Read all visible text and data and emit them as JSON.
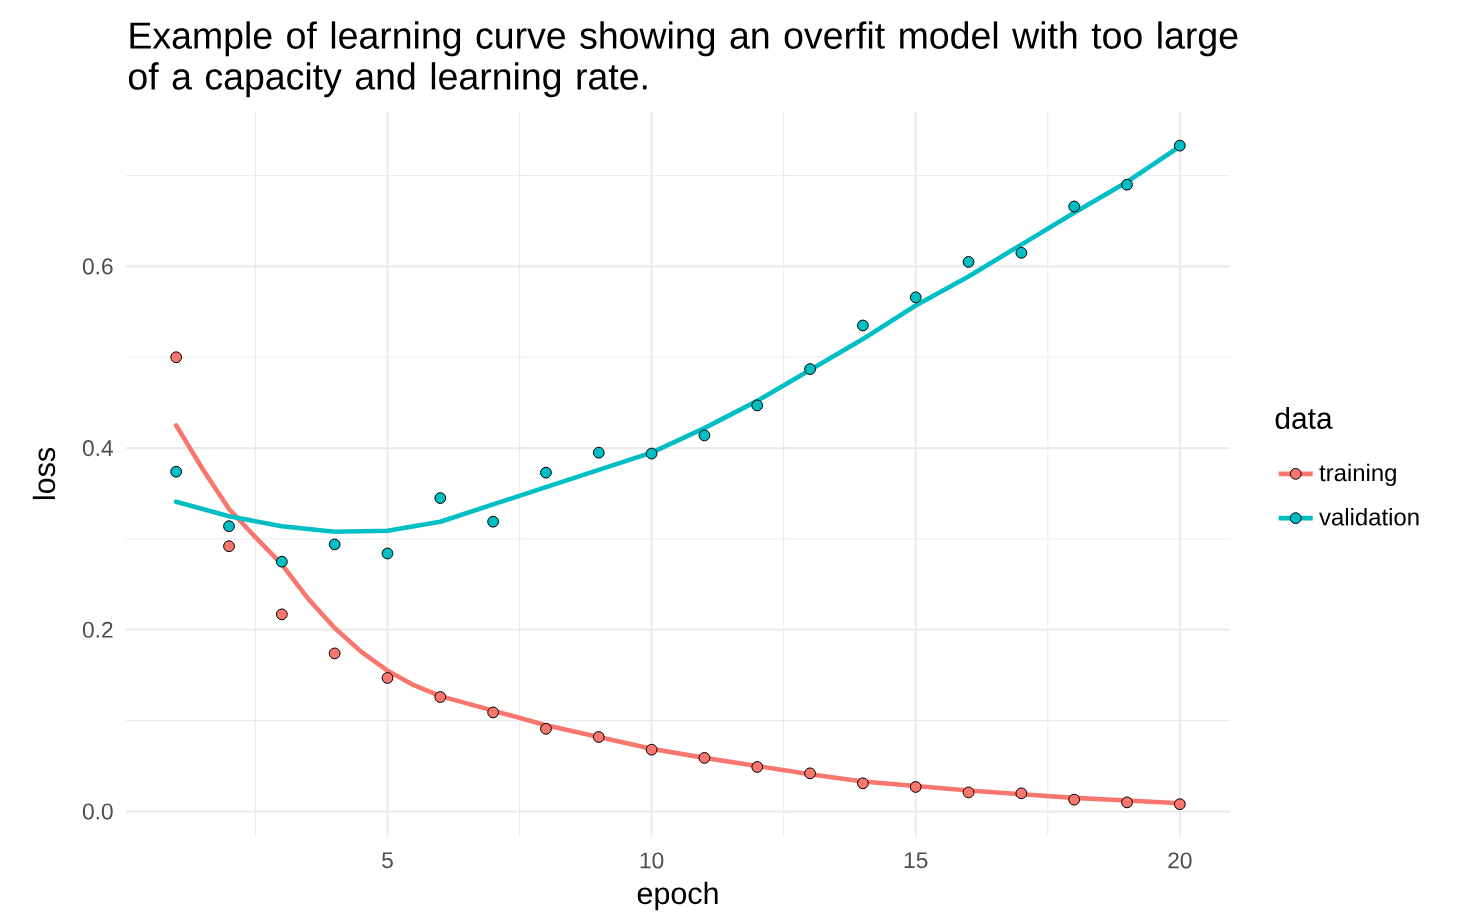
{
  "chart_data": {
    "type": "scatter",
    "title": "Example of learning curve showing an overfit model with too large of a capacity and learning rate.",
    "xlabel": "epoch",
    "ylabel": "loss",
    "legend_title": "data",
    "legend": "right",
    "grid": true,
    "marker": "circle",
    "xlim": [
      0.05,
      20.95
    ],
    "xticks": [
      5,
      10,
      15,
      20
    ],
    "ylim": [
      -0.027,
      0.77
    ],
    "yticks": [
      {
        "value": 0,
        "label": "0.0"
      },
      0.2,
      0.4,
      0.6
    ],
    "x": [
      1,
      2,
      3,
      4,
      5,
      6,
      7,
      8,
      9,
      10,
      11,
      12,
      13,
      14,
      15,
      16,
      17,
      18,
      19,
      20
    ],
    "series": [
      {
        "type": "line",
        "marker": "none",
        "color": "#f8766d",
        "x": [
          1,
          1.5,
          2,
          2.5,
          3,
          3.5,
          4,
          4.5,
          5,
          5.5,
          6,
          7,
          8,
          9,
          10,
          11,
          12,
          13,
          14,
          15,
          16,
          17,
          18,
          19,
          20
        ],
        "values": [
          0.425,
          0.377,
          0.333,
          0.302,
          0.272,
          0.234,
          0.202,
          0.176,
          0.155,
          0.139,
          0.127,
          0.111,
          0.095,
          0.082,
          0.069,
          0.059,
          0.05,
          0.041,
          0.033,
          0.028,
          0.023,
          0.019,
          0.015,
          0.012,
          0.009
        ]
      },
      {
        "type": "line",
        "marker": "none",
        "color": "#00bfc4",
        "x": [
          1,
          2,
          3,
          4,
          5,
          6,
          7,
          8,
          9,
          10,
          11,
          12,
          13,
          14,
          15,
          16,
          17,
          18,
          19,
          20
        ],
        "values": [
          0.341,
          0.325,
          0.314,
          0.308,
          0.309,
          0.319,
          0.338,
          0.357,
          0.376,
          0.395,
          0.422,
          0.452,
          0.486,
          0.52,
          0.557,
          0.589,
          0.624,
          0.659,
          0.693,
          0.732
        ]
      },
      {
        "name": "training",
        "color": "#f8766d",
        "values": [
          0.5,
          0.292,
          0.217,
          0.174,
          0.147,
          0.126,
          0.109,
          0.091,
          0.082,
          0.068,
          0.059,
          0.049,
          0.042,
          0.031,
          0.027,
          0.021,
          0.02,
          0.013,
          0.01,
          0.008
        ]
      },
      {
        "name": "validation",
        "color": "#00bfc4",
        "values": [
          0.374,
          0.314,
          0.275,
          0.294,
          0.284,
          0.345,
          0.319,
          0.373,
          0.395,
          0.394,
          0.414,
          0.447,
          0.487,
          0.535,
          0.566,
          0.605,
          0.615,
          0.666,
          0.69,
          0.733
        ]
      }
    ]
  }
}
